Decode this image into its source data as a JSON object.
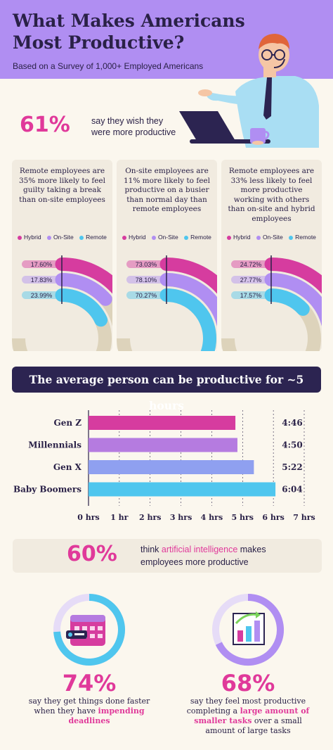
{
  "header": {
    "title": "What Makes Americans Most Productive?",
    "subtitle": "Based on a Survey of 1,000+ Employed Americans"
  },
  "stat_61": {
    "value": "61%",
    "text": "say they wish they were more productive"
  },
  "colors": {
    "hybrid": "#d63c9f",
    "onsite": "#b08ef2",
    "remote": "#4fc6ee",
    "track": "#ddd3bb",
    "accent": "#e0399a",
    "navy": "#2c2451"
  },
  "legend": {
    "hybrid": "Hybrid",
    "onsite": "On-Site",
    "remote": "Remote"
  },
  "banner": "The average person can be productive for ~5 hours",
  "stat_60": {
    "value": "60%",
    "text_pre": "think ",
    "highlight": "artificial intelligence",
    "text_post": " makes employees more productive"
  },
  "stat_74": {
    "value": "74%",
    "text_pre": "say they get things done faster when they have ",
    "highlight": "impending deadlines",
    "text_post": ""
  },
  "stat_68": {
    "value": "68%",
    "text_pre": "say they feel most productive completing a ",
    "highlight": "large amount of smaller tasks",
    "text_post": " over a small amount of large tasks"
  },
  "chart_data": [
    {
      "type": "radial-bar",
      "title": "Remote employees are 35% more likely to feel guilty taking a break than on-site employees",
      "series": [
        {
          "name": "Hybrid",
          "value": 17.6,
          "label": "17.60%"
        },
        {
          "name": "On-Site",
          "value": 17.83,
          "label": "17.83%"
        },
        {
          "name": "Remote",
          "value": 23.99,
          "label": "23.99%"
        }
      ]
    },
    {
      "type": "radial-bar",
      "title": "On-site employees are 11% more likely to feel productive on a busier than normal day than remote employees",
      "series": [
        {
          "name": "Hybrid",
          "value": 73.03,
          "label": "73.03%"
        },
        {
          "name": "On-Site",
          "value": 78.1,
          "label": "78.10%"
        },
        {
          "name": "Remote",
          "value": 70.27,
          "label": "70.27%"
        }
      ]
    },
    {
      "type": "radial-bar",
      "title": "Remote employees are 33% less likely to feel more productive working with others than on-site and hybrid employees",
      "series": [
        {
          "name": "Hybrid",
          "value": 24.72,
          "label": "24.72%"
        },
        {
          "name": "On-Site",
          "value": 27.77,
          "label": "27.77%"
        },
        {
          "name": "Remote",
          "value": 17.57,
          "label": "17.57%"
        }
      ]
    },
    {
      "type": "bar",
      "orientation": "horizontal",
      "categories": [
        "Gen Z",
        "Millennials",
        "Gen X",
        "Baby Boomers"
      ],
      "values": [
        4.767,
        4.833,
        5.367,
        6.067
      ],
      "value_labels": [
        "4:46",
        "4:50",
        "5:22",
        "6:04"
      ],
      "xticks": [
        "0 hrs",
        "1 hr",
        "2 hrs",
        "3 hrs",
        "4 hrs",
        "5 hrs",
        "6 hrs",
        "7 hrs"
      ],
      "xlim": [
        0,
        7
      ],
      "colors": [
        "#d63c9f",
        "#b57be0",
        "#8fa0f0",
        "#4fc6ee"
      ]
    },
    {
      "type": "donut",
      "value": 74,
      "label": "74%"
    },
    {
      "type": "donut",
      "value": 68,
      "label": "68%"
    }
  ]
}
